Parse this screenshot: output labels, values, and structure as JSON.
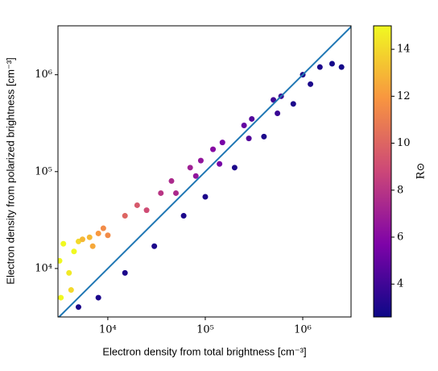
{
  "chart_data": {
    "type": "scatter",
    "x_label": "Electron density from total brightness [cm⁻³]",
    "y_label": "Electron density from polarized brightness [cm⁻³]",
    "colorbar_label": "R⊙",
    "log_x": true,
    "log_y": true,
    "colormap": "plasma",
    "xlim": [
      3080,
      3130000
    ],
    "ylim": [
      3160,
      3200000
    ],
    "clim": [
      2.6,
      15
    ],
    "xticks": [
      {
        "value": 10000,
        "label": "10⁴"
      },
      {
        "value": 100000,
        "label": "10⁵"
      },
      {
        "value": 1000000,
        "label": "10⁶"
      }
    ],
    "yticks": [
      {
        "value": 10000,
        "label": "10⁴"
      },
      {
        "value": 100000,
        "label": "10⁵"
      },
      {
        "value": 1000000,
        "label": "10⁶"
      }
    ],
    "cticks": [
      4,
      6,
      8,
      10,
      12,
      14
    ],
    "series": [
      {
        "x": [
          3200,
          3500,
          4000,
          4500,
          5000,
          3300,
          4200,
          5500,
          6500,
          7000,
          8000,
          9000,
          10000,
          15000,
          20000,
          25000,
          35000,
          45000,
          50000,
          70000,
          90000,
          80000,
          120000,
          150000,
          140000,
          250000,
          300000,
          280000,
          500000,
          600000,
          550000,
          1000000,
          1500000,
          2000000,
          800000,
          1200000,
          2500000,
          5000,
          8000,
          15000,
          30000,
          60000,
          100000,
          200000,
          400000
        ],
        "y": [
          12000,
          18000,
          9000,
          15000,
          19000,
          5000,
          6000,
          20000,
          21000,
          17000,
          23000,
          26000,
          22000,
          35000,
          45000,
          40000,
          60000,
          80000,
          60000,
          110000,
          130000,
          90000,
          170000,
          200000,
          120000,
          300000,
          350000,
          220000,
          550000,
          600000,
          400000,
          1000000,
          1200000,
          1300000,
          500000,
          800000,
          1200000,
          4000,
          5000,
          9000,
          17000,
          35000,
          55000,
          110000,
          230000
        ],
        "c": [
          15,
          15,
          14.5,
          15,
          14,
          15,
          14,
          13,
          13,
          12.5,
          12,
          11.5,
          11.5,
          10,
          9.5,
          9,
          8,
          7.5,
          7.5,
          7,
          6.5,
          6.5,
          6,
          5.5,
          5.5,
          5,
          4.5,
          4.5,
          4,
          3.8,
          3.8,
          3,
          3,
          2.8,
          3,
          3,
          2.8,
          3,
          3,
          3,
          3,
          3,
          3,
          3,
          3
        ]
      }
    ],
    "reference_line": {
      "color": "#1f77b4",
      "x": [
        3080,
        3130000
      ],
      "y": [
        3080,
        3130000
      ]
    }
  }
}
